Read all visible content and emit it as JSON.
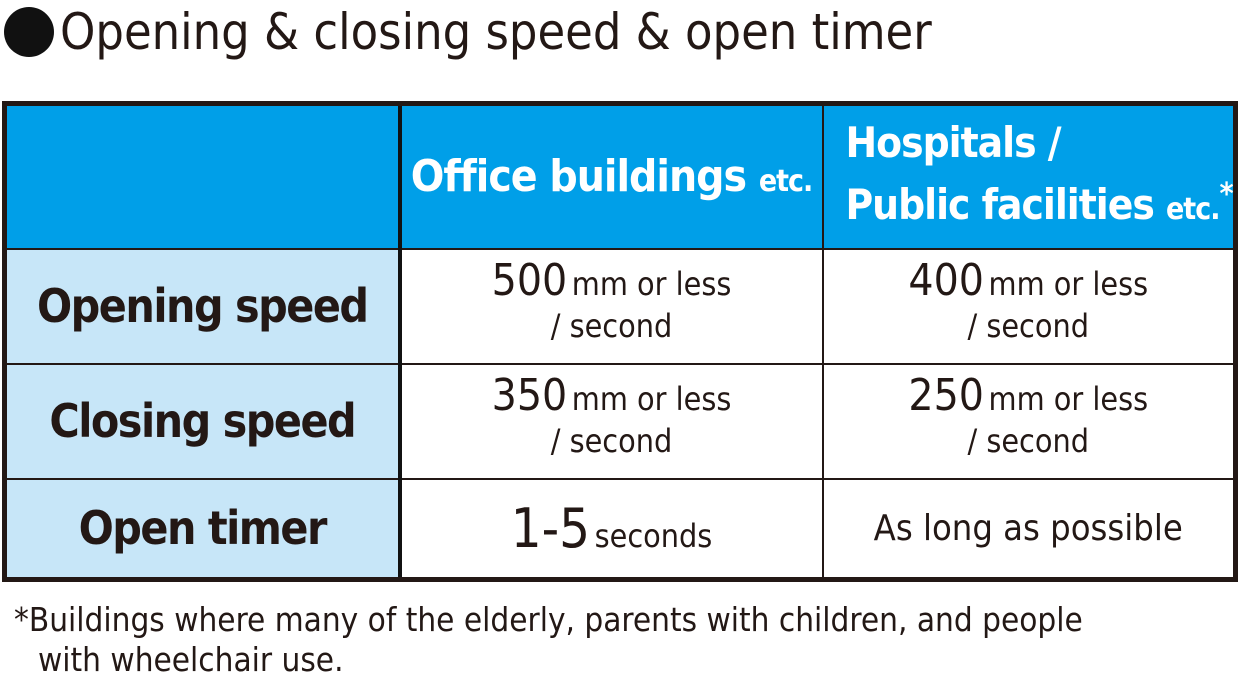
{
  "title": "Opening & closing speed & open timer",
  "colors": {
    "header": "#009fe8",
    "row_header": "#c7e6f8",
    "border": "#231815"
  },
  "table": {
    "headers": [
      {
        "main": "Office buildings",
        "suffix": "etc."
      },
      {
        "line1": "Hospitals /",
        "line2": "Public facilities",
        "suffix": "etc.",
        "mark": "*"
      }
    ],
    "rows": [
      {
        "label": "Opening speed",
        "office": {
          "num": "500",
          "unit": "mm or less",
          "per": "/ second"
        },
        "hospital": {
          "num": "400",
          "unit": "mm or less",
          "per": "/ second"
        }
      },
      {
        "label": "Closing speed",
        "office": {
          "num": "350",
          "unit": "mm or less",
          "per": "/ second"
        },
        "hospital": {
          "num": "250",
          "unit": "mm or less",
          "per": "/ second"
        }
      },
      {
        "label": "Open timer",
        "office": {
          "num": "1-5",
          "unit": "seconds"
        },
        "hospital": {
          "text": "As long as possible"
        }
      }
    ]
  },
  "footnote": {
    "line1": "*Buildings where many of the elderly, parents with children, and people",
    "line2": "with wheelchair use."
  }
}
